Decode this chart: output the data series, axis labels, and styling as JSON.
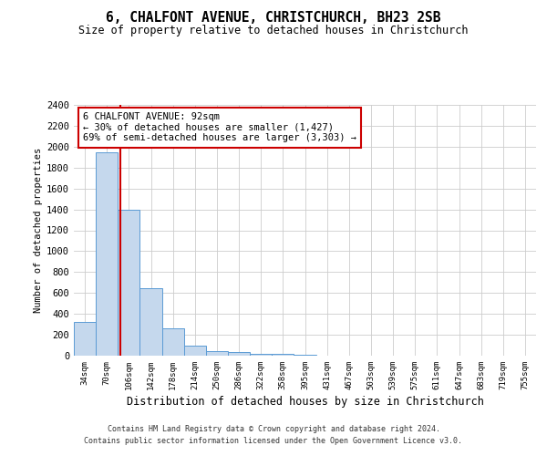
{
  "title": "6, CHALFONT AVENUE, CHRISTCHURCH, BH23 2SB",
  "subtitle": "Size of property relative to detached houses in Christchurch",
  "xlabel": "Distribution of detached houses by size in Christchurch",
  "ylabel": "Number of detached properties",
  "footer_line1": "Contains HM Land Registry data © Crown copyright and database right 2024.",
  "footer_line2": "Contains public sector information licensed under the Open Government Licence v3.0.",
  "bin_labels": [
    "34sqm",
    "70sqm",
    "106sqm",
    "142sqm",
    "178sqm",
    "214sqm",
    "250sqm",
    "286sqm",
    "322sqm",
    "358sqm",
    "395sqm",
    "431sqm",
    "467sqm",
    "503sqm",
    "539sqm",
    "575sqm",
    "611sqm",
    "647sqm",
    "683sqm",
    "719sqm",
    "755sqm"
  ],
  "bar_values": [
    320,
    1950,
    1400,
    650,
    260,
    100,
    45,
    35,
    20,
    15,
    5,
    3,
    2,
    1,
    1,
    0,
    0,
    0,
    0,
    0,
    0
  ],
  "bar_color": "#c5d8ed",
  "bar_edge_color": "#5b9bd5",
  "property_label": "6 CHALFONT AVENUE: 92sqm",
  "annotation_line1": "← 30% of detached houses are smaller (1,427)",
  "annotation_line2": "69% of semi-detached houses are larger (3,303) →",
  "red_line_color": "#cc0000",
  "annotation_box_edge": "#cc0000",
  "ylim": [
    0,
    2400
  ],
  "yticks": [
    0,
    200,
    400,
    600,
    800,
    1000,
    1200,
    1400,
    1600,
    1800,
    2000,
    2200,
    2400
  ],
  "red_line_x": 1.61,
  "background_color": "#ffffff",
  "grid_color": "#cccccc"
}
